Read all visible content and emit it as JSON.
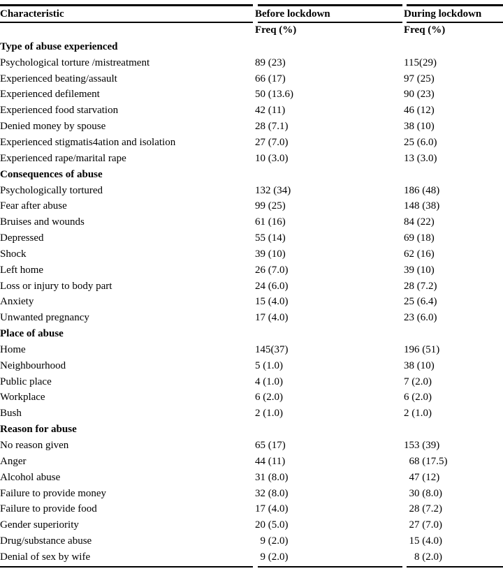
{
  "colors": {
    "background": "#ffffff",
    "text": "#000000",
    "rule": "#000000"
  },
  "table": {
    "header": {
      "characteristic": "Characteristic",
      "before": "Before lockdown",
      "during": "During lockdown",
      "freq_before": "Freq (%)",
      "freq_during": "Freq (%)"
    },
    "sections": [
      {
        "title": "Type of abuse experienced",
        "rows": [
          {
            "label": "Psychological torture /mistreatment",
            "before": "89 (23)",
            "during": "115(29)"
          },
          {
            "label": "Experienced beating/assault",
            "before": "66 (17)",
            "during": "97 (25)"
          },
          {
            "label": "Experienced defilement",
            "before": "50 (13.6)",
            "during": "90 (23)"
          },
          {
            "label": "Experienced food starvation",
            "before": "42 (11)",
            "during": "46 (12)"
          },
          {
            "label": "Denied money by spouse",
            "before": "28 (7.1)",
            "during": "38 (10)"
          },
          {
            "label": "Experienced stigmatis4ation and isolation",
            "before": "27 (7.0)",
            "during": "25 (6.0)"
          },
          {
            "label": "Experienced rape/marital rape",
            "before": "10 (3.0)",
            "during": "13 (3.0)"
          }
        ]
      },
      {
        "title": "Consequences of abuse",
        "rows": [
          {
            "label": "Psychologically tortured",
            "before": "132 (34)",
            "during": "186 (48)"
          },
          {
            "label": "Fear after abuse",
            "before": "99 (25)",
            "during": "148 (38)"
          },
          {
            "label": "Bruises and wounds",
            "before": "61 (16)",
            "during": "84 (22)"
          },
          {
            "label": "Depressed",
            "before": "55 (14)",
            "during": "69 (18)"
          },
          {
            "label": "Shock",
            "before": "39 (10)",
            "during": "62 (16)"
          },
          {
            "label": "Left home",
            "before": "26 (7.0)",
            "during": "39 (10)"
          },
          {
            "label": "Loss or injury to body part",
            "before": "24 (6.0)",
            "during": "28 (7.2)"
          },
          {
            "label": "Anxiety",
            "before": "15 (4.0)",
            "during": "25 (6.4)"
          },
          {
            "label": "Unwanted pregnancy",
            "before": "17 (4.0)",
            "during": "23 (6.0)"
          }
        ]
      },
      {
        "title": "Place of abuse",
        "rows": [
          {
            "label": "Home",
            "before": "145(37)",
            "during": "196 (51)"
          },
          {
            "label": "Neighbourhood",
            "before": "5 (1.0)",
            "during": "38 (10)"
          },
          {
            "label": "Public place",
            "before": "4 (1.0)",
            "during": "7 (2.0)"
          },
          {
            "label": "Workplace",
            "before": "6 (2.0)",
            "during": "6 (2.0)"
          },
          {
            "label": "Bush",
            "before": "2 (1.0)",
            "during": "2 (1.0)"
          }
        ]
      },
      {
        "title": "Reason for abuse",
        "rows": [
          {
            "label": "No reason given",
            "before": "65 (17)",
            "during": "153 (39)"
          },
          {
            "label": "Anger",
            "before": "44 (11)",
            "during": "  68 (17.5)"
          },
          {
            "label": "Alcohol abuse",
            "before": "31 (8.0)",
            "during": "  47 (12)"
          },
          {
            "label": "Failure to provide money",
            "before": "32 (8.0)",
            "during": "  30 (8.0)"
          },
          {
            "label": "Failure to provide food",
            "before": "17 (4.0)",
            "during": "  28 (7.2)"
          },
          {
            "label": "Gender superiority",
            "before": "20 (5.0)",
            "during": "  27 (7.0)"
          },
          {
            "label": "Drug/substance abuse",
            "before": "  9 (2.0)",
            "during": "  15 (4.0)"
          },
          {
            "label": "Denial of sex by wife",
            "before": "  9 (2.0)",
            "during": "    8 (2.0)"
          }
        ]
      }
    ]
  }
}
